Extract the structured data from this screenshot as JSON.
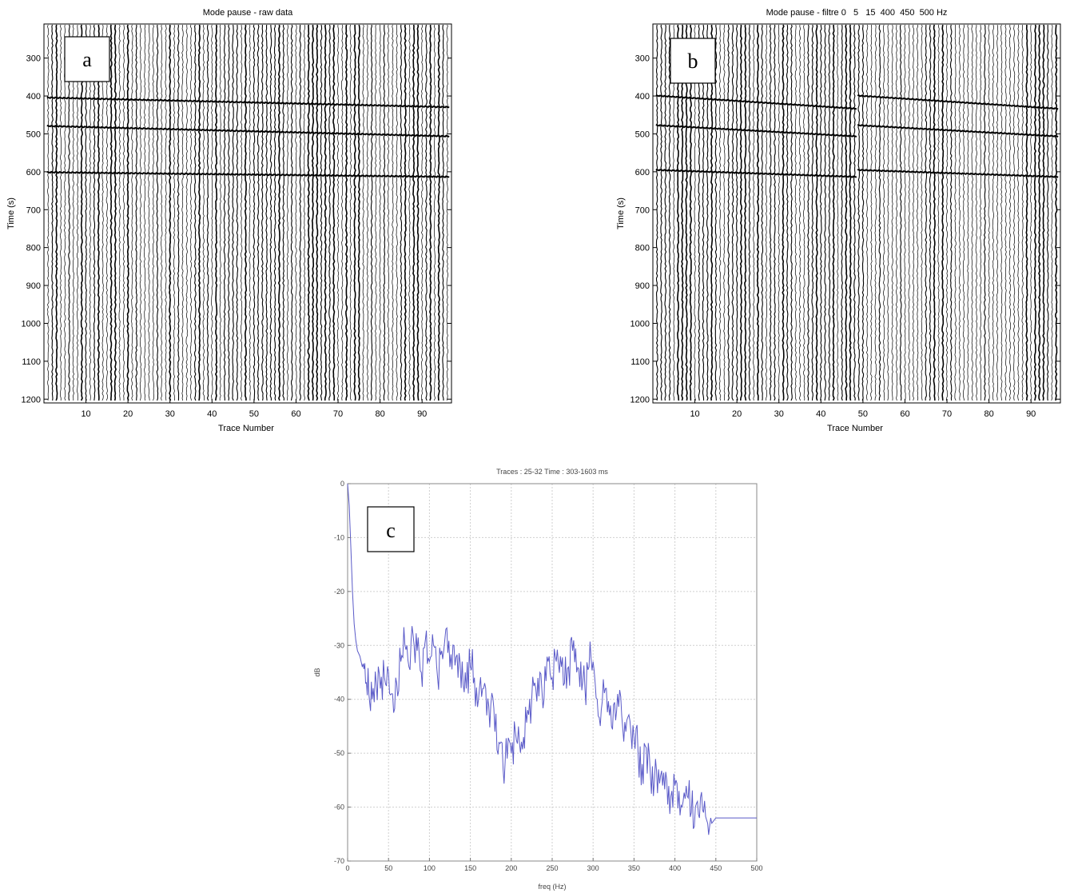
{
  "chart_data": [
    {
      "type": "seismic-wiggle",
      "panel_label": "a",
      "title": "Mode pause - raw data",
      "xlabel": "Trace Number",
      "ylabel": "Time (s)",
      "xlim": [
        0,
        97
      ],
      "ylim": [
        210,
        1210
      ],
      "x_ticks": [
        10,
        20,
        30,
        40,
        50,
        60,
        70,
        80,
        90
      ],
      "y_ticks": [
        300,
        400,
        500,
        600,
        700,
        800,
        900,
        1000,
        1100,
        1200
      ],
      "trace_count": 96,
      "events": [
        {
          "first_trace": 1,
          "last_trace": 96,
          "time_start": 403,
          "time_end": 428
        },
        {
          "first_trace": 1,
          "last_trace": 96,
          "time_start": 478,
          "time_end": 505
        },
        {
          "first_trace": 1,
          "last_trace": 96,
          "time_start": 600,
          "time_end": 612
        }
      ]
    },
    {
      "type": "seismic-wiggle",
      "panel_label": "b",
      "title": "Mode pause - filtre 0   5   15  400  450  500 Hz",
      "xlabel": "Trace Number",
      "ylabel": "Time (s)",
      "xlim": [
        0,
        97
      ],
      "ylim": [
        210,
        1210
      ],
      "x_ticks": [
        10,
        20,
        30,
        40,
        50,
        60,
        70,
        80,
        90
      ],
      "y_ticks": [
        300,
        400,
        500,
        600,
        700,
        800,
        900,
        1000,
        1100,
        1200
      ],
      "trace_count": 96,
      "events": [
        {
          "first_trace": 1,
          "last_trace": 48,
          "time_start": 398,
          "time_end": 432
        },
        {
          "first_trace": 49,
          "last_trace": 96,
          "time_start": 398,
          "time_end": 432
        },
        {
          "first_trace": 1,
          "last_trace": 48,
          "time_start": 476,
          "time_end": 505
        },
        {
          "first_trace": 49,
          "last_trace": 96,
          "time_start": 476,
          "time_end": 505
        },
        {
          "first_trace": 1,
          "last_trace": 48,
          "time_start": 594,
          "time_end": 612
        },
        {
          "first_trace": 49,
          "last_trace": 96,
          "time_start": 594,
          "time_end": 612
        }
      ]
    },
    {
      "type": "line",
      "panel_label": "c",
      "title": "Traces : 25-32  Time : 303-1603 ms",
      "xlabel": "freq (Hz)",
      "ylabel": "dB",
      "xlim": [
        0,
        500
      ],
      "ylim": [
        -70,
        0
      ],
      "grid": true,
      "x_ticks": [
        0,
        50,
        100,
        150,
        200,
        250,
        300,
        350,
        400,
        450,
        500
      ],
      "y_ticks": [
        0,
        -10,
        -20,
        -30,
        -40,
        -50,
        -60,
        -70
      ],
      "line_color": "#5a5ac8",
      "x": [
        0,
        2,
        4,
        6,
        8,
        10,
        12,
        15,
        18,
        22,
        26,
        30,
        35,
        40,
        45,
        50,
        55,
        60,
        65,
        70,
        75,
        80,
        85,
        90,
        95,
        100,
        105,
        110,
        115,
        120,
        125,
        130,
        135,
        140,
        145,
        150,
        155,
        160,
        165,
        170,
        175,
        180,
        185,
        190,
        195,
        200,
        205,
        210,
        215,
        220,
        225,
        230,
        235,
        240,
        245,
        250,
        255,
        260,
        265,
        270,
        275,
        280,
        285,
        290,
        295,
        300,
        305,
        310,
        315,
        320,
        325,
        330,
        335,
        340,
        345,
        350,
        355,
        360,
        365,
        370,
        375,
        380,
        385,
        390,
        395,
        400,
        405,
        410,
        415,
        420,
        425,
        430,
        435,
        440,
        445,
        450,
        460,
        470,
        480,
        490,
        500
      ],
      "values": [
        0,
        -4,
        -12,
        -20,
        -26,
        -29,
        -31,
        -32,
        -34,
        -37,
        -39,
        -40,
        -37,
        -38,
        -36,
        -35,
        -39,
        -37,
        -33,
        -30,
        -34,
        -28,
        -31,
        -35,
        -29,
        -33,
        -30,
        -36,
        -31,
        -27,
        -34,
        -30,
        -36,
        -33,
        -38,
        -34,
        -36,
        -40,
        -38,
        -43,
        -41,
        -46,
        -48,
        -53,
        -51,
        -50,
        -46,
        -48,
        -47,
        -42,
        -40,
        -38,
        -35,
        -40,
        -33,
        -36,
        -33,
        -32,
        -37,
        -34,
        -31,
        -35,
        -33,
        -38,
        -34,
        -33,
        -40,
        -42,
        -38,
        -43,
        -41,
        -39,
        -43,
        -46,
        -44,
        -47,
        -50,
        -52,
        -49,
        -54,
        -55,
        -53,
        -56,
        -55,
        -58,
        -56,
        -57,
        -59,
        -58,
        -61,
        -60,
        -62,
        -61,
        -63,
        -63,
        -62,
        -62,
        -62,
        -62,
        -62,
        -62
      ]
    }
  ]
}
